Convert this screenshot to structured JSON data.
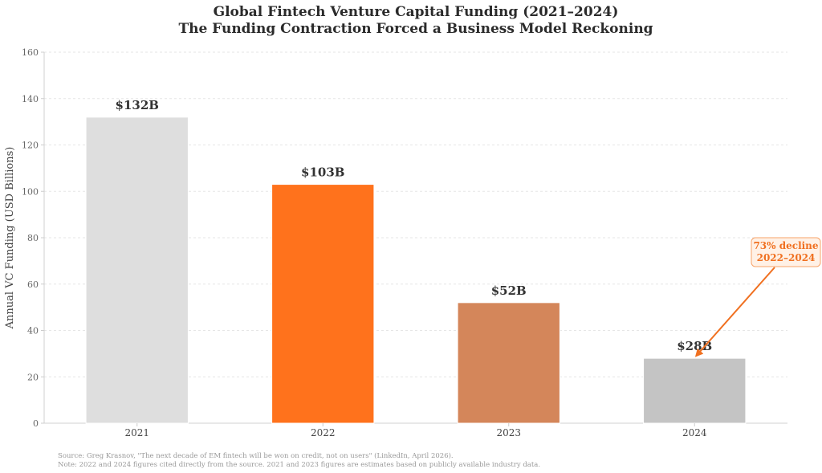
{
  "chart_data": {
    "type": "bar",
    "title": "Global Fintech Venture Capital Funding (2021–2024)",
    "subtitle": "The Funding Contraction Forced a Business Model Reckoning",
    "xlabel": "",
    "ylabel": "Annual VC Funding (USD Billions)",
    "ylim": [
      0,
      160
    ],
    "yticks": [
      0,
      20,
      40,
      60,
      80,
      100,
      120,
      140,
      160
    ],
    "grid": true,
    "categories": [
      "2021",
      "2022",
      "2023",
      "2024"
    ],
    "values": [
      132,
      103,
      52,
      28
    ],
    "data_labels": [
      "$132B",
      "$103B",
      "$52B",
      "$28B"
    ],
    "colors": [
      "#dedede",
      "#ff721c",
      "#d4865a",
      "#c4c4c4"
    ],
    "annotation": {
      "lines": [
        "73% decline",
        "2022–2024"
      ],
      "target_category": "2024",
      "target_value": 28,
      "color": "#f07020"
    },
    "footnotes": [
      "Source: Greg Krasnov, \"The next decade of EM fintech will be won on credit, not on users\" (LinkedIn, April 2026).",
      "Note: 2022 and 2024 figures cited directly from the source. 2021 and 2023 figures are estimates based on publicly available industry data."
    ]
  }
}
